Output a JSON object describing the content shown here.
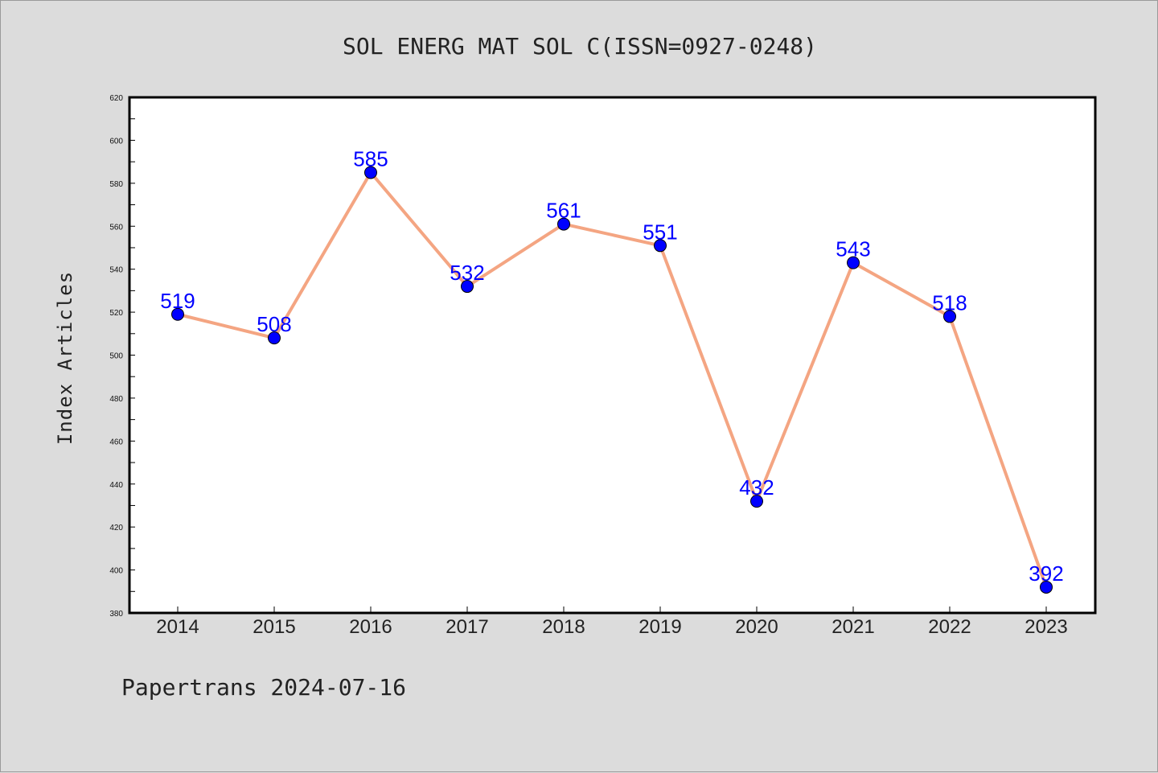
{
  "chart_data": {
    "type": "line",
    "title": "SOL ENERG MAT SOL C(ISSN=0927-0248)",
    "xlabel": "",
    "ylabel": "Index Articles",
    "categories": [
      "2014",
      "2015",
      "2016",
      "2017",
      "2018",
      "2019",
      "2020",
      "2021",
      "2022",
      "2023"
    ],
    "series": [
      {
        "values": [
          519,
          508,
          585,
          532,
          561,
          551,
          432,
          543,
          518,
          392
        ]
      }
    ],
    "data_labels": [
      "519",
      "508",
      "585",
      "532",
      "561",
      "551",
      "432",
      "543",
      "518",
      "392"
    ],
    "ylim": [
      380,
      620
    ],
    "yticks": [
      380,
      400,
      420,
      440,
      460,
      480,
      500,
      520,
      540,
      560,
      580,
      600,
      620
    ],
    "grid": false,
    "legend": "none",
    "colors": {
      "line": "#f4a582",
      "marker": "#0000ff",
      "label": "#0000ff",
      "background": "#dcdcdc",
      "plot_area": "#ffffff"
    }
  },
  "footer": "Papertrans 2024-07-16"
}
